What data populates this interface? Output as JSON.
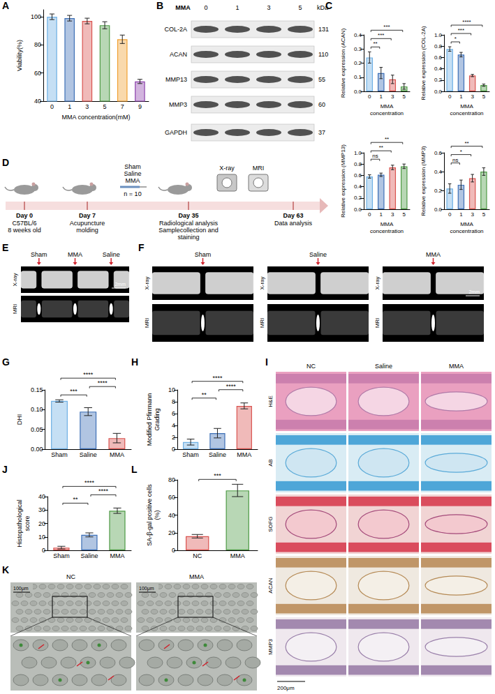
{
  "chart_data": [
    {
      "panel": "A",
      "type": "bar",
      "categories": [
        "0",
        "1",
        "3",
        "5",
        "7",
        "9"
      ],
      "values": [
        100,
        99,
        97,
        94,
        84,
        54
      ],
      "errors": [
        2,
        2,
        2,
        2.5,
        3,
        1.5
      ],
      "colors": [
        "#6fb0e4",
        "#3d6fb6",
        "#d9534f",
        "#4e9a45",
        "#f0a030",
        "#8e44ad"
      ],
      "x_label": "MMA concentration(mM)",
      "y_label": "Viability(%)",
      "ylim": [
        40,
        105
      ],
      "yticks": [
        40,
        60,
        80,
        100
      ],
      "grid": false,
      "comparisons": []
    },
    {
      "panel": "C",
      "type": "bar",
      "categories": [
        "0",
        "1",
        "3",
        "5"
      ],
      "values": [
        0.24,
        0.13,
        0.085,
        0.035
      ],
      "errors": [
        0.04,
        0.04,
        0.03,
        0.02
      ],
      "colors": [
        "#6fb0e4",
        "#3d6fb6",
        "#d9534f",
        "#4e9a45"
      ],
      "x_label": "MMA concentration",
      "y_label": "Relative expression (ACAN)",
      "ylim": [
        0,
        0.4
      ],
      "yticks": [
        {
          "value": 0,
          "label": "0.0"
        },
        0.1,
        0.2,
        0.3,
        0.4
      ],
      "grid": false,
      "comparisons": [
        {
          "from": 0,
          "to": 1,
          "label": "**"
        },
        {
          "from": 0,
          "to": 2,
          "label": "***"
        },
        {
          "from": 0,
          "to": 3,
          "label": "***"
        }
      ]
    },
    {
      "panel": "C",
      "type": "bar",
      "categories": [
        "0",
        "1",
        "3",
        "5"
      ],
      "values": [
        0.75,
        0.65,
        0.28,
        0.11
      ],
      "errors": [
        0.04,
        0.04,
        0.02,
        0.02
      ],
      "colors": [
        "#6fb0e4",
        "#3d6fb6",
        "#d9534f",
        "#4e9a45"
      ],
      "x_label": "MMA concentration",
      "y_label": "Relative expression (COL-2A)",
      "ylim": [
        0,
        1.0
      ],
      "yticks": [
        {
          "value": 0,
          "label": "0.0"
        },
        0.2,
        0.4,
        0.6,
        0.8,
        {
          "value": 1,
          "label": "1.0"
        }
      ],
      "grid": false,
      "comparisons": [
        {
          "from": 0,
          "to": 1,
          "label": "*"
        },
        {
          "from": 0,
          "to": 2,
          "label": "***"
        },
        {
          "from": 0,
          "to": 3,
          "label": "****"
        }
      ]
    },
    {
      "panel": "C",
      "type": "bar",
      "categories": [
        "0",
        "1",
        "3",
        "5"
      ],
      "values": [
        0.58,
        0.61,
        0.74,
        0.76
      ],
      "errors": [
        0.03,
        0.03,
        0.04,
        0.04
      ],
      "colors": [
        "#6fb0e4",
        "#3d6fb6",
        "#d9534f",
        "#4e9a45"
      ],
      "x_label": "MMA concentration",
      "y_label": "Relative expression (MMP13)",
      "ylim": [
        0,
        1.0
      ],
      "yticks": [
        {
          "value": 0,
          "label": "0.0"
        },
        0.2,
        0.4,
        0.6,
        0.8,
        {
          "value": 1,
          "label": "1.0"
        }
      ],
      "grid": false,
      "comparisons": [
        {
          "from": 0,
          "to": 1,
          "label": "ns"
        },
        {
          "from": 0,
          "to": 2,
          "label": "**"
        },
        {
          "from": 0,
          "to": 3,
          "label": "**"
        }
      ]
    },
    {
      "panel": "C",
      "type": "bar",
      "categories": [
        "0",
        "1",
        "3",
        "5"
      ],
      "values": [
        0.22,
        0.26,
        0.33,
        0.4
      ],
      "errors": [
        0.05,
        0.05,
        0.04,
        0.04
      ],
      "colors": [
        "#6fb0e4",
        "#3d6fb6",
        "#d9534f",
        "#4e9a45"
      ],
      "x_label": "MMA concentration",
      "y_label": "Relative expression (MMP3)",
      "ylim": [
        0,
        0.6
      ],
      "yticks": [
        {
          "value": 0,
          "label": "0.0"
        },
        0.2,
        0.4,
        0.6
      ],
      "grid": false,
      "comparisons": [
        {
          "from": 0,
          "to": 1,
          "label": "ns"
        },
        {
          "from": 0,
          "to": 2,
          "label": "*"
        },
        {
          "from": 0,
          "to": 3,
          "label": "**"
        }
      ]
    },
    {
      "panel": "G",
      "type": "bar",
      "categories": [
        "Sham",
        "Saline",
        "MMA"
      ],
      "values": [
        0.122,
        0.095,
        0.028
      ],
      "errors": [
        0.003,
        0.01,
        0.012
      ],
      "colors": [
        "#6fb0e4",
        "#3d6fb6",
        "#d9534f"
      ],
      "y_label": "DHI",
      "ylim": [
        0,
        0.15
      ],
      "yticks": [
        {
          "value": 0,
          "label": "0.00"
        },
        0.05,
        {
          "value": 0.1,
          "label": "0.10"
        },
        0.15
      ],
      "grid": false,
      "comparisons": [
        {
          "from": 0,
          "to": 1,
          "label": "***"
        },
        {
          "from": 0,
          "to": 2,
          "label": "****"
        },
        {
          "from": 1,
          "to": 2,
          "label": "****"
        }
      ]
    },
    {
      "panel": "H",
      "type": "bar",
      "categories": [
        "Sham",
        "Saline",
        "MMA"
      ],
      "values": [
        1.2,
        2.7,
        7.3
      ],
      "errors": [
        0.5,
        0.8,
        0.5
      ],
      "colors": [
        "#6fb0e4",
        "#3d6fb6",
        "#d9534f"
      ],
      "y_label": "Modified Pfirrmann Grading",
      "ylim": [
        0,
        10
      ],
      "yticks": [
        0,
        2,
        4,
        6,
        8,
        10
      ],
      "grid": false,
      "comparisons": [
        {
          "from": 0,
          "to": 1,
          "label": "**"
        },
        {
          "from": 0,
          "to": 2,
          "label": "****"
        },
        {
          "from": 1,
          "to": 2,
          "label": "****"
        }
      ]
    },
    {
      "panel": "J",
      "type": "bar",
      "categories": [
        "Sham",
        "Saline",
        "MMA"
      ],
      "values": [
        2,
        11.5,
        29.5
      ],
      "errors": [
        1,
        1.5,
        2
      ],
      "colors": [
        "#d9534f",
        "#3d6fb6",
        "#4e9a45"
      ],
      "y_label": "Histopathological score",
      "ylim": [
        0,
        40
      ],
      "yticks": [
        0,
        10,
        20,
        30,
        40
      ],
      "grid": false,
      "comparisons": [
        {
          "from": 0,
          "to": 1,
          "label": "**"
        },
        {
          "from": 0,
          "to": 2,
          "label": "****"
        },
        {
          "from": 1,
          "to": 2,
          "label": "****"
        }
      ]
    },
    {
      "panel": "L",
      "type": "bar",
      "categories": [
        "NC",
        "MMA"
      ],
      "values": [
        16,
        68
      ],
      "errors": [
        2,
        7
      ],
      "colors": [
        "#d9534f",
        "#4e9a45"
      ],
      "y_label": "SA-β-gal positive cells (%)",
      "ylim": [
        0,
        80
      ],
      "yticks": [
        0,
        20,
        40,
        60,
        80
      ],
      "grid": false,
      "comparisons": [
        {
          "from": 0,
          "to": 1,
          "label": "***"
        }
      ]
    }
  ],
  "western_blot": {
    "panel": "B",
    "treatment": "MMA",
    "lanes": [
      "0",
      "1",
      "3",
      "5"
    ],
    "unit": "kDa",
    "rows": [
      {
        "protein": "COL-2A",
        "kda": 131
      },
      {
        "protein": "ACAN",
        "kda": 110
      },
      {
        "protein": "MMP13",
        "kda": 55
      },
      {
        "protein": "MMP3",
        "kda": 60
      },
      {
        "protein": "GAPDH",
        "kda": 37
      }
    ]
  },
  "timeline": {
    "panel": "D",
    "steps": [
      {
        "day": "Day 0",
        "notes": [
          "C57BL/6",
          "8 weeks old"
        ]
      },
      {
        "day": "Day 7",
        "notes": [
          "Acupuncture molding"
        ]
      },
      {
        "day": "Day 35",
        "notes": [
          "Radiological analysis",
          "Samplecollection and staining"
        ]
      },
      {
        "day": "Day 63",
        "notes": [
          "Data analysis"
        ]
      }
    ],
    "groups": [
      "Sham",
      "Saline",
      "MMA"
    ],
    "group_size": "n = 10",
    "imaging": [
      "X-ray",
      "MRI"
    ]
  },
  "imaging_E": {
    "panel": "E",
    "groups": [
      "Sham",
      "MMA",
      "Saline"
    ],
    "modalities": [
      "X-ray",
      "MRI"
    ],
    "scale_bar": "2mm"
  },
  "imaging_F": {
    "panel": "F",
    "groups": [
      "Sham",
      "Saline",
      "MMA"
    ],
    "modalities": [
      "X-ray",
      "MRI"
    ],
    "scale_bar": "2mm"
  },
  "histology": {
    "panel": "I",
    "groups": [
      "NC",
      "Saline",
      "MMA"
    ],
    "stains": [
      "H&E",
      "AB",
      "SOFG",
      "ACAN",
      "MMP3"
    ],
    "scale_bar": "200μm"
  },
  "cell_images": {
    "panel": "K",
    "groups": [
      "NC",
      "MMA"
    ],
    "scale_bar": "100μm"
  }
}
